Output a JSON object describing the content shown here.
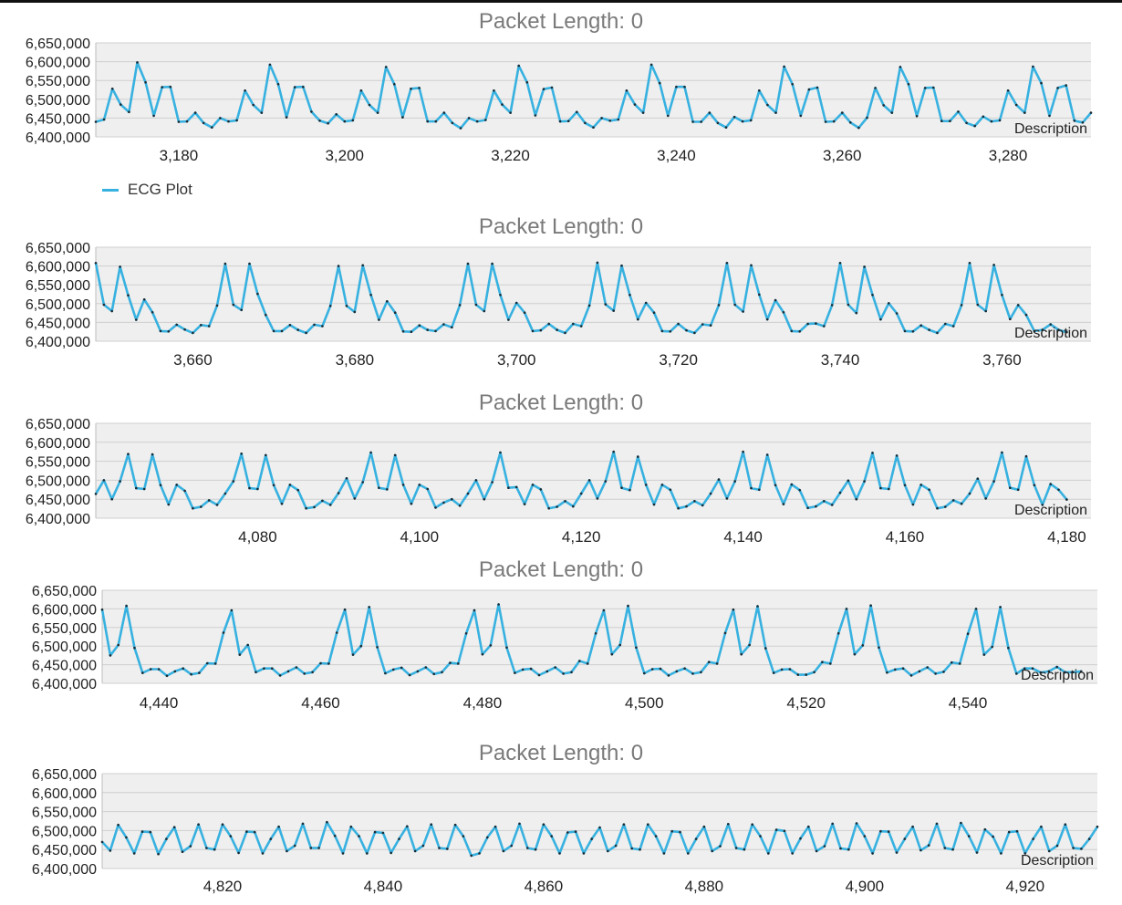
{
  "legend": {
    "label": "ECG Plot",
    "color": "#37b1e0"
  },
  "chart_data": [
    {
      "type": "line",
      "title": "Packet Length: 0",
      "description_label": "Description",
      "series_name": "ECG Plot",
      "ylim": [
        6400000,
        6650000
      ],
      "yticks": [
        6400000,
        6450000,
        6500000,
        6550000,
        6600000,
        6650000
      ],
      "ytick_labels": [
        "6,400,000",
        "6,450,000",
        "6,500,000",
        "6,550,000",
        "6,600,000",
        "6,650,000"
      ],
      "xlim": [
        3170,
        3290
      ],
      "xticks": [
        3180,
        3200,
        3220,
        3240,
        3260,
        3280
      ],
      "xtick_labels": [
        "3,180",
        "3,200",
        "3,220",
        "3,240",
        "3,260",
        "3,280"
      ],
      "x_start": 3170,
      "values": [
        6440000,
        6446000,
        6528000,
        6486000,
        6466000,
        6598000,
        6545000,
        6456000,
        6532000,
        6533000,
        6440000,
        6441000,
        6464000,
        6437000,
        6425000,
        6450000,
        6441000,
        6444000,
        6523000,
        6485000,
        6464000,
        6592000,
        6540000,
        6452000,
        6532000,
        6533000,
        6467000,
        6443000,
        6436000,
        6460000,
        6441000,
        6444000,
        6523000,
        6485000,
        6464000,
        6586000,
        6540000,
        6452000,
        6528000,
        6530000,
        6441000,
        6441000,
        6464000,
        6437000,
        6423000,
        6450000,
        6441000,
        6445000,
        6523000,
        6486000,
        6464000,
        6589000,
        6545000,
        6457000,
        6527000,
        6531000,
        6441000,
        6442000,
        6466000,
        6437000,
        6425000,
        6450000,
        6443000,
        6446000,
        6523000,
        6486000,
        6464000,
        6592000,
        6543000,
        6456000,
        6533000,
        6533000,
        6440000,
        6440000,
        6464000,
        6437000,
        6425000,
        6453000,
        6441000,
        6444000,
        6523000,
        6485000,
        6464000,
        6587000,
        6540000,
        6456000,
        6526000,
        6531000,
        6440000,
        6441000,
        6464000,
        6438000,
        6424000,
        6451000,
        6530000,
        6484000,
        6464000,
        6586000,
        6540000,
        6455000,
        6530000,
        6531000,
        6442000,
        6442000,
        6467000,
        6437000,
        6429000,
        6454000,
        6441000,
        6444000,
        6523000,
        6485000,
        6464000,
        6587000,
        6543000,
        6456000,
        6530000,
        6537000,
        6443000,
        6438000,
        6464000
      ]
    },
    {
      "type": "line",
      "title": "Packet Length: 0",
      "description_label": "Description",
      "series_name": "ECG Plot",
      "ylim": [
        6400000,
        6650000
      ],
      "yticks": [
        6400000,
        6450000,
        6500000,
        6550000,
        6600000,
        6650000
      ],
      "ytick_labels": [
        "6,400,000",
        "6,450,000",
        "6,500,000",
        "6,550,000",
        "6,600,000",
        "6,650,000"
      ],
      "xlim": [
        3648,
        3771
      ],
      "xticks": [
        3660,
        3680,
        3700,
        3720,
        3740,
        3760
      ],
      "xtick_labels": [
        "3,660",
        "3,680",
        "3,700",
        "3,720",
        "3,740",
        "3,760"
      ],
      "x_start": 3648,
      "values": [
        6608000,
        6497000,
        6480000,
        6598000,
        6522000,
        6457000,
        6511000,
        6477000,
        6427000,
        6426000,
        6444000,
        6431000,
        6422000,
        6443000,
        6440000,
        6495000,
        6606000,
        6497000,
        6483000,
        6606000,
        6526000,
        6470000,
        6427000,
        6427000,
        6443000,
        6430000,
        6422000,
        6444000,
        6440000,
        6494000,
        6600000,
        6494000,
        6478000,
        6602000,
        6523000,
        6457000,
        6506000,
        6476000,
        6426000,
        6425000,
        6442000,
        6430000,
        6427000,
        6445000,
        6437000,
        6496000,
        6606000,
        6497000,
        6480000,
        6606000,
        6523000,
        6457000,
        6502000,
        6476000,
        6427000,
        6429000,
        6446000,
        6430000,
        6422000,
        6446000,
        6440000,
        6495000,
        6609000,
        6498000,
        6481000,
        6601000,
        6523000,
        6458000,
        6502000,
        6476000,
        6427000,
        6426000,
        6446000,
        6429000,
        6422000,
        6445000,
        6442000,
        6496000,
        6608000,
        6497000,
        6479000,
        6602000,
        6524000,
        6458000,
        6509000,
        6477000,
        6427000,
        6426000,
        6446000,
        6447000,
        6440000,
        6496000,
        6608000,
        6497000,
        6475000,
        6598000,
        6523000,
        6458000,
        6501000,
        6474000,
        6427000,
        6426000,
        6442000,
        6430000,
        6422000,
        6446000,
        6440000,
        6496000,
        6608000,
        6497000,
        6480000,
        6603000,
        6523000,
        6459000,
        6496000,
        6470000,
        6427000,
        6430000,
        6445000,
        6430000,
        6424000
      ]
    },
    {
      "type": "line",
      "title": "Packet Length: 0",
      "description_label": "Description",
      "series_name": "ECG Plot",
      "ylim": [
        6400000,
        6650000
      ],
      "yticks": [
        6400000,
        6450000,
        6500000,
        6550000,
        6600000,
        6650000
      ],
      "ytick_labels": [
        "6,400,000",
        "6,450,000",
        "6,500,000",
        "6,550,000",
        "6,600,000",
        "6,650,000"
      ],
      "xlim": [
        4060,
        4183
      ],
      "xticks": [
        4080,
        4100,
        4120,
        4140,
        4160,
        4180
      ],
      "xtick_labels": [
        "4,080",
        "4,100",
        "4,120",
        "4,140",
        "4,160",
        "4,180"
      ],
      "x_start": 4060,
      "values": [
        6464000,
        6500000,
        6450000,
        6497000,
        6569000,
        6479000,
        6477000,
        6568000,
        6487000,
        6436000,
        6488000,
        6472000,
        6426000,
        6430000,
        6447000,
        6435000,
        6465000,
        6497000,
        6570000,
        6479000,
        6477000,
        6566000,
        6487000,
        6438000,
        6488000,
        6474000,
        6426000,
        6429000,
        6446000,
        6435000,
        6466000,
        6505000,
        6452000,
        6495000,
        6573000,
        6480000,
        6476000,
        6566000,
        6488000,
        6438000,
        6488000,
        6477000,
        6428000,
        6441000,
        6450000,
        6433000,
        6465000,
        6500000,
        6450000,
        6495000,
        6573000,
        6480000,
        6482000,
        6437000,
        6488000,
        6476000,
        6426000,
        6430000,
        6445000,
        6431000,
        6465000,
        6500000,
        6452000,
        6497000,
        6575000,
        6480000,
        6474000,
        6562000,
        6488000,
        6436000,
        6488000,
        6475000,
        6426000,
        6431000,
        6445000,
        6434000,
        6465000,
        6502000,
        6452000,
        6497000,
        6575000,
        6479000,
        6475000,
        6567000,
        6487000,
        6437000,
        6489000,
        6474000,
        6427000,
        6431000,
        6445000,
        6435000,
        6467000,
        6499000,
        6450000,
        6497000,
        6572000,
        6479000,
        6477000,
        6565000,
        6487000,
        6436000,
        6488000,
        6475000,
        6426000,
        6430000,
        6447000,
        6438000,
        6465000,
        6504000,
        6452000,
        6497000,
        6573000,
        6480000,
        6475000,
        6563000,
        6487000,
        6435000,
        6490000,
        6475000,
        6449000
      ]
    },
    {
      "type": "line",
      "title": "Packet Length: 0",
      "description_label": "Description",
      "series_name": "ECG Plot",
      "ylim": [
        6400000,
        6650000
      ],
      "yticks": [
        6400000,
        6450000,
        6500000,
        6550000,
        6600000,
        6650000
      ],
      "ytick_labels": [
        "6,400,000",
        "6,450,000",
        "6,500,000",
        "6,550,000",
        "6,600,000",
        "6,650,000"
      ],
      "xlim": [
        4433,
        4556
      ],
      "xticks": [
        4440,
        4460,
        4480,
        4500,
        4520,
        4540
      ],
      "xtick_labels": [
        "4,440",
        "4,460",
        "4,480",
        "4,500",
        "4,520",
        "4,540"
      ],
      "x_start": 4433,
      "values": [
        6598000,
        6475000,
        6503000,
        6608000,
        6495000,
        6428000,
        6438000,
        6438000,
        6420000,
        6432000,
        6440000,
        6424000,
        6428000,
        6454000,
        6453000,
        6536000,
        6596000,
        6477000,
        6503000,
        6430000,
        6440000,
        6440000,
        6421000,
        6432000,
        6443000,
        6426000,
        6430000,
        6454000,
        6453000,
        6536000,
        6598000,
        6477000,
        6500000,
        6605000,
        6497000,
        6427000,
        6437000,
        6442000,
        6422000,
        6432000,
        6443000,
        6425000,
        6430000,
        6455000,
        6453000,
        6534000,
        6596000,
        6478000,
        6502000,
        6612000,
        6496000,
        6428000,
        6437000,
        6439000,
        6422000,
        6432000,
        6443000,
        6426000,
        6430000,
        6460000,
        6453000,
        6534000,
        6596000,
        6478000,
        6503000,
        6608000,
        6496000,
        6427000,
        6438000,
        6439000,
        6421000,
        6432000,
        6440000,
        6426000,
        6430000,
        6457000,
        6453000,
        6535000,
        6598000,
        6478000,
        6503000,
        6607000,
        6494000,
        6428000,
        6437000,
        6438000,
        6423000,
        6423000,
        6430000,
        6457000,
        6453000,
        6534000,
        6600000,
        6478000,
        6502000,
        6609000,
        6496000,
        6429000,
        6437000,
        6440000,
        6421000,
        6432000,
        6443000,
        6426000,
        6431000,
        6456000,
        6453000,
        6533000,
        6600000,
        6477000,
        6498000,
        6605000,
        6495000,
        6426000,
        6440000,
        6440000,
        6429000,
        6432000,
        6444000,
        6430000,
        6430000,
        6432000
      ]
    },
    {
      "type": "line",
      "title": "Packet Length: 0",
      "description_label": "Description",
      "series_name": "ECG Plot",
      "ylim": [
        6400000,
        6650000
      ],
      "yticks": [
        6400000,
        6450000,
        6500000,
        6550000,
        6600000,
        6650000
      ],
      "ytick_labels": [
        "6,400,000",
        "6,450,000",
        "6,500,000",
        "6,550,000",
        "6,600,000",
        "6,650,000"
      ],
      "xlim": [
        4805,
        4929
      ],
      "xticks": [
        4820,
        4840,
        4860,
        4880,
        4900,
        4920
      ],
      "xtick_labels": [
        "4,820",
        "4,840",
        "4,860",
        "4,880",
        "4,900",
        "4,920"
      ],
      "x_start": 4805,
      "values": [
        6470000,
        6447000,
        6515000,
        6482000,
        6440000,
        6497000,
        6496000,
        6438000,
        6478000,
        6509000,
        6444000,
        6459000,
        6516000,
        6454000,
        6450000,
        6516000,
        6485000,
        6441000,
        6497000,
        6496000,
        6440000,
        6478000,
        6510000,
        6446000,
        6460000,
        6518000,
        6454000,
        6454000,
        6522000,
        6486000,
        6440000,
        6510000,
        6485000,
        6440000,
        6496000,
        6494000,
        6441000,
        6478000,
        6511000,
        6446000,
        6460000,
        6516000,
        6454000,
        6452000,
        6515000,
        6485000,
        6434000,
        6440000,
        6482000,
        6510000,
        6446000,
        6460000,
        6518000,
        6454000,
        6450000,
        6516000,
        6485000,
        6440000,
        6495000,
        6497000,
        6440000,
        6478000,
        6508000,
        6446000,
        6460000,
        6516000,
        6453000,
        6450000,
        6516000,
        6485000,
        6440000,
        6498000,
        6496000,
        6440000,
        6478000,
        6510000,
        6446000,
        6459000,
        6517000,
        6454000,
        6450000,
        6516000,
        6485000,
        6440000,
        6502000,
        6499000,
        6440000,
        6479000,
        6510000,
        6446000,
        6459000,
        6518000,
        6453000,
        6450000,
        6519000,
        6485000,
        6440000,
        6498000,
        6497000,
        6442000,
        6478000,
        6510000,
        6448000,
        6461000,
        6518000,
        6454000,
        6450000,
        6520000,
        6485000,
        6442000,
        6503000,
        6484000,
        6440000,
        6496000,
        6498000,
        6440000,
        6478000,
        6510000,
        6446000,
        6460000,
        6516000,
        6454000,
        6452000,
        6478000,
        6510000,
        6446000
      ]
    }
  ]
}
